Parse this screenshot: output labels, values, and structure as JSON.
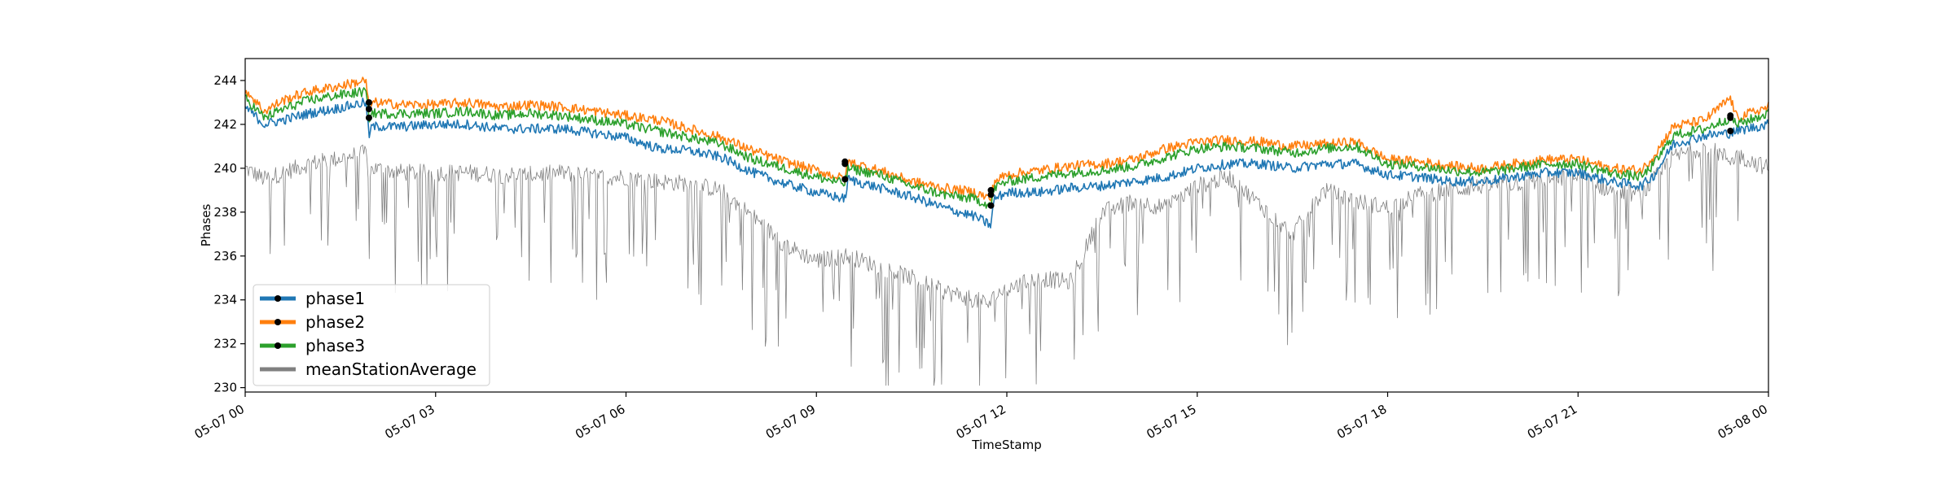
{
  "chart_data": {
    "type": "line",
    "title": "",
    "xlabel": "TimeStamp",
    "ylabel": "Phases",
    "x_range": [
      "05-07 00:00",
      "05-08 00:00"
    ],
    "ylim": [
      229.8,
      245.0
    ],
    "x_tick_labels": [
      "05-07 00",
      "05-07 03",
      "05-07 06",
      "05-07 09",
      "05-07 12",
      "05-07 15",
      "05-07 18",
      "05-07 21",
      "05-08 00"
    ],
    "y_ticks": [
      230,
      232,
      234,
      236,
      238,
      240,
      242,
      244
    ],
    "grid": false,
    "legend_position": "lower-left",
    "x_hours": [
      0,
      0.3,
      0.6,
      1.0,
      1.4,
      1.9,
      1.95,
      2.0,
      2.5,
      3.0,
      3.5,
      4.0,
      4.5,
      5.0,
      5.5,
      6.0,
      6.5,
      7.0,
      7.5,
      8.0,
      8.5,
      9.0,
      9.45,
      9.5,
      10.0,
      10.5,
      11.0,
      11.5,
      11.75,
      11.8,
      12.0,
      12.5,
      13.0,
      13.5,
      14.0,
      14.5,
      15.0,
      15.5,
      16.0,
      16.5,
      17.0,
      17.5,
      18.0,
      18.5,
      19.0,
      19.5,
      20.0,
      20.5,
      21.0,
      21.5,
      22.0,
      22.2,
      22.5,
      23.0,
      23.4,
      23.5,
      24.0
    ],
    "series": [
      {
        "name": "phase1",
        "color": "#1f77b4",
        "values": [
          242.8,
          242.0,
          242.2,
          242.5,
          242.7,
          243.0,
          241.5,
          241.9,
          241.9,
          242.0,
          242.0,
          241.8,
          241.8,
          241.8,
          241.6,
          241.4,
          240.9,
          240.8,
          240.5,
          239.8,
          239.3,
          238.9,
          238.6,
          239.5,
          239.1,
          238.7,
          238.2,
          237.8,
          237.4,
          238.6,
          238.9,
          238.9,
          239.1,
          239.2,
          239.4,
          239.6,
          240.0,
          240.2,
          240.2,
          240.0,
          240.2,
          240.2,
          239.7,
          239.6,
          239.4,
          239.4,
          239.6,
          239.8,
          239.8,
          239.4,
          239.2,
          239.7,
          241.1,
          241.5,
          241.6,
          241.7,
          242.0
        ]
      },
      {
        "name": "phase2",
        "color": "#ff7f0e",
        "values": [
          243.6,
          242.6,
          243.1,
          243.5,
          243.7,
          244.0,
          242.8,
          243.0,
          242.9,
          242.9,
          243.0,
          242.8,
          242.9,
          242.8,
          242.6,
          242.4,
          242.2,
          241.8,
          241.4,
          240.8,
          240.3,
          239.9,
          239.5,
          240.3,
          239.9,
          239.4,
          239.1,
          238.9,
          238.6,
          239.4,
          239.7,
          239.9,
          240.1,
          240.2,
          240.4,
          240.9,
          241.2,
          241.3,
          241.2,
          241.0,
          241.1,
          241.2,
          240.4,
          240.3,
          240.1,
          240.0,
          240.2,
          240.4,
          240.4,
          240.0,
          239.9,
          240.6,
          241.9,
          242.2,
          243.2,
          242.3,
          242.8
        ]
      },
      {
        "name": "phase3",
        "color": "#2ca02c",
        "values": [
          243.2,
          242.3,
          242.7,
          243.1,
          243.3,
          243.5,
          242.3,
          242.5,
          242.5,
          242.5,
          242.6,
          242.4,
          242.5,
          242.4,
          242.2,
          242.0,
          241.7,
          241.4,
          241.1,
          240.4,
          240.0,
          239.6,
          239.3,
          240.0,
          239.7,
          239.2,
          238.8,
          238.6,
          238.3,
          239.1,
          239.4,
          239.6,
          239.8,
          239.9,
          240.1,
          240.5,
          240.9,
          241.0,
          240.9,
          240.7,
          240.9,
          241.0,
          240.2,
          240.1,
          239.9,
          239.8,
          240.0,
          240.2,
          240.2,
          239.8,
          239.6,
          240.2,
          241.5,
          241.8,
          242.3,
          242.0,
          242.5
        ]
      },
      {
        "name": "meanStationAverage",
        "color": "#808080",
        "values": [
          240.0,
          239.5,
          239.8,
          240.2,
          240.4,
          240.7,
          239.6,
          240.0,
          239.8,
          239.8,
          239.8,
          239.7,
          239.7,
          239.8,
          239.6,
          239.6,
          239.4,
          239.3,
          239.0,
          237.8,
          236.5,
          235.8,
          236.0,
          236.0,
          235.5,
          235.0,
          234.4,
          234.0,
          233.8,
          234.2,
          234.5,
          235.0,
          234.8,
          238.0,
          238.5,
          238.2,
          239.2,
          239.6,
          238.3,
          237.0,
          239.0,
          238.5,
          238.2,
          238.8,
          239.0,
          239.2,
          239.3,
          239.5,
          239.6,
          239.0,
          238.8,
          239.5,
          240.5,
          241.0,
          240.4,
          240.6,
          240.0
        ]
      }
    ],
    "markers": [
      {
        "series": "phase1",
        "x_hours": [
          1.95,
          9.45,
          11.75,
          23.4
        ],
        "y": [
          242.3,
          239.5,
          238.3,
          241.7
        ]
      },
      {
        "series": "phase2",
        "x_hours": [
          1.95,
          9.45,
          11.75,
          23.4
        ],
        "y": [
          243.0,
          240.3,
          239.0,
          242.4
        ]
      },
      {
        "series": "phase3",
        "x_hours": [
          1.95,
          9.45,
          11.75,
          23.4
        ],
        "y": [
          242.7,
          240.2,
          238.8,
          242.3
        ]
      }
    ]
  }
}
